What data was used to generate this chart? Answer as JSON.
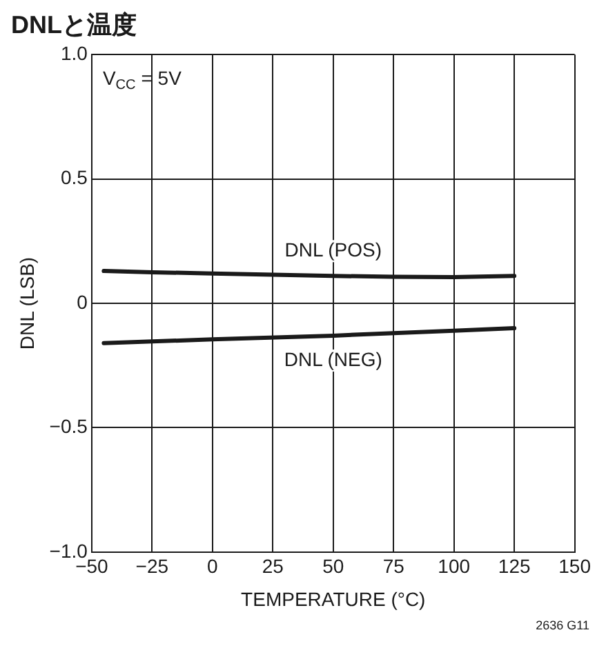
{
  "chart_data": {
    "type": "line",
    "title": "DNLと温度",
    "xlabel": "TEMPERATURE (°C)",
    "ylabel": "DNL (LSB)",
    "series": [
      {
        "name": "DNL (POS)",
        "color": "#1a1a1a",
        "x": [
          -45,
          -25,
          0,
          25,
          50,
          75,
          100,
          125
        ],
        "values": [
          0.13,
          0.125,
          0.12,
          0.115,
          0.11,
          0.107,
          0.105,
          0.11
        ]
      },
      {
        "name": "DNL (NEG)",
        "color": "#1a1a1a",
        "x": [
          -45,
          0,
          50,
          100,
          125
        ],
        "values": [
          -0.16,
          -0.145,
          -0.13,
          -0.11,
          -0.1
        ]
      }
    ],
    "xlim": [
      -50,
      150
    ],
    "xticks": [
      {
        "value": -50,
        "label": "−50"
      },
      {
        "value": -25,
        "label": "−25"
      },
      0,
      25,
      50,
      75,
      100,
      125,
      150
    ],
    "ylim": [
      -1,
      1
    ],
    "yticks": [
      {
        "value": -1,
        "label": "−1.0"
      },
      {
        "value": -0.5,
        "label": "−0.5"
      },
      0,
      {
        "value": 0.5,
        "label": "0.5"
      },
      {
        "value": 1,
        "label": "1.0"
      }
    ],
    "grid": true,
    "legend": false,
    "marker": "none",
    "line_style": "solid",
    "annotations": [
      "V$_{CC}$ = 5V",
      "2636 G11"
    ]
  }
}
